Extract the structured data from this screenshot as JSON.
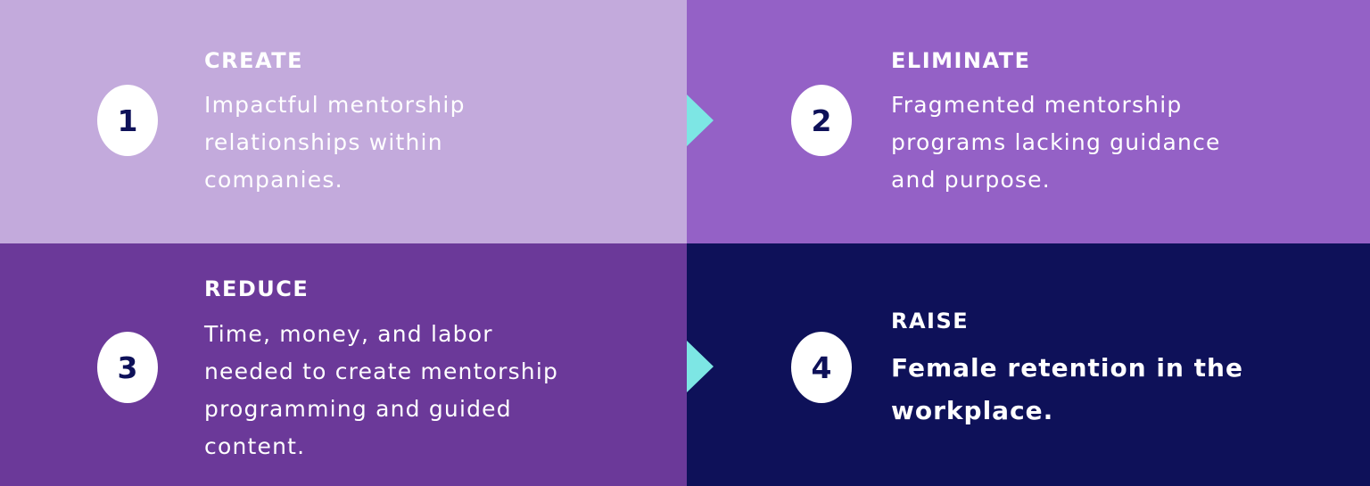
{
  "colors": {
    "panel_1": "#c3aadc",
    "panel_2": "#9461c6",
    "panel_3": "#6b3999",
    "panel_4": "#0e1159",
    "badge_bg": "#ffffff",
    "badge_text": "#0e1159",
    "arrow": "#7de6e4",
    "text": "#ffffff"
  },
  "steps": [
    {
      "number": "1",
      "title": "CREATE",
      "description": "Impactful mentorship relationships within companies."
    },
    {
      "number": "2",
      "title": "ELIMINATE",
      "description": "Fragmented mentorship programs lacking guidance and purpose."
    },
    {
      "number": "3",
      "title": "REDUCE",
      "description": "Time, money, and labor needed to create mentorship programming and guided content."
    },
    {
      "number": "4",
      "title": "RAISE",
      "description": "Female retention in the workplace."
    }
  ]
}
